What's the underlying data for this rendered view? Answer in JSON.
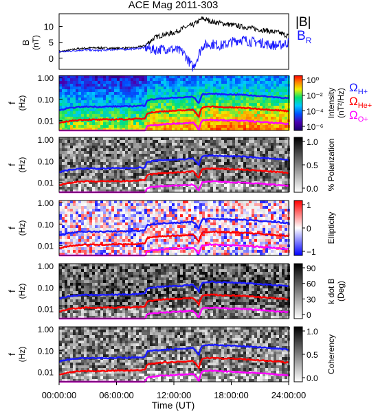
{
  "title": "ACE Mag 2011-303",
  "colors": {
    "black": "#000000",
    "blue": "#1a1aff",
    "red": "#ff0000",
    "magenta": "#ff00ff"
  },
  "chart_data": [
    {
      "type": "line",
      "panel": "B",
      "ylabel": "B",
      "yunit": "(nT)",
      "ylim": [
        -3.5,
        14
      ],
      "yticks": [
        "0",
        "5",
        "10"
      ],
      "yticks_val": [
        0,
        5,
        10
      ],
      "legend": [
        "|B|",
        "BR"
      ],
      "x_hours": [
        0,
        1,
        2,
        3,
        4,
        5,
        6,
        7,
        8,
        9,
        10,
        11,
        12,
        13,
        14,
        15,
        16,
        17,
        18,
        19,
        20,
        21,
        22,
        23,
        24
      ],
      "series": [
        {
          "name": "|B|",
          "color": "#000000",
          "values": [
            2.0,
            2.5,
            3.0,
            3.2,
            3.3,
            3.2,
            3.1,
            3.2,
            3.3,
            4.0,
            6.5,
            7.5,
            8.0,
            9.5,
            10.5,
            12.5,
            11.5,
            11.0,
            10.5,
            10.0,
            9.5,
            9.0,
            8.5,
            8.0,
            7.0
          ]
        },
        {
          "name": "BR",
          "color": "#1a1aff",
          "values": [
            2.0,
            2.2,
            2.5,
            2.6,
            2.4,
            2.6,
            2.8,
            2.8,
            3.0,
            3.4,
            2.6,
            3.0,
            2.8,
            1.8,
            -3.0,
            4.0,
            4.5,
            4.0,
            5.0,
            6.0,
            5.2,
            5.0,
            4.2,
            4.0,
            5.0
          ]
        }
      ]
    },
    {
      "type": "heatmap",
      "panel": "Intensity",
      "ylabel": "f",
      "yunit": "(Hz)",
      "yticks": [
        "1.00",
        "0.10",
        "0.01"
      ],
      "colorbar_label": "Intensity",
      "colorbar_unit": "(nT²/Hz)",
      "colorbar_ticks": [
        "10⁰",
        "10⁻²",
        "10⁻⁴",
        "10⁻⁶"
      ],
      "legend": [
        "ΩH+",
        "ΩHe+",
        "ΩO+"
      ]
    },
    {
      "type": "heatmap",
      "panel": "Polarization",
      "ylabel": "f",
      "yunit": "(Hz)",
      "yticks": [
        "1.00",
        "0.10",
        "0.01"
      ],
      "colorbar_label": "% Polarization",
      "colorbar_ticks": [
        "1.0",
        "0.5",
        "0.0"
      ]
    },
    {
      "type": "heatmap",
      "panel": "Ellipticity",
      "ylabel": "f",
      "yunit": "(Hz)",
      "yticks": [
        "1.00",
        "0.10",
        "0.01"
      ],
      "colorbar_label": "Ellipticity",
      "colorbar_ticks": [
        "1",
        "0",
        "−1"
      ]
    },
    {
      "type": "heatmap",
      "panel": "k dot B",
      "ylabel": "f",
      "yunit": "(Hz)",
      "yticks": [
        "1.00",
        "0.10",
        "0.01"
      ],
      "colorbar_label": "k dot B",
      "colorbar_unit": "(Deg)",
      "colorbar_ticks": [
        "90",
        "60",
        "30",
        "0"
      ]
    },
    {
      "type": "heatmap",
      "panel": "Coherency",
      "ylabel": "f",
      "yunit": "(Hz)",
      "yticks": [
        "1.00",
        "0.10",
        "0.01"
      ],
      "colorbar_label": "Coherency",
      "colorbar_ticks": [
        "1.0",
        "0.5",
        "0.0"
      ]
    }
  ],
  "gyrofrequency_hours": [
    0,
    1,
    2,
    3,
    4,
    5,
    6,
    7,
    8,
    9,
    9.2,
    10,
    11,
    12,
    13,
    14,
    14.6,
    15,
    16,
    17,
    18,
    19,
    20,
    21,
    22,
    23,
    24
  ],
  "gyrofrequency_H_hz": [
    0.03,
    0.038,
    0.043,
    0.045,
    0.044,
    0.045,
    0.046,
    0.046,
    0.048,
    0.05,
    0.09,
    0.1,
    0.11,
    0.115,
    0.12,
    0.13,
    0.06,
    0.17,
    0.18,
    0.17,
    0.165,
    0.16,
    0.15,
    0.14,
    0.13,
    0.12,
    0.11
  ],
  "xaxis": {
    "label": "Time (UT)",
    "ticks": [
      "00:00:00",
      "06:00:00",
      "12:00:00",
      "18:00:00",
      "24:00:00"
    ],
    "ticks_val": [
      0,
      6,
      12,
      18,
      24
    ],
    "range": [
      0,
      24
    ]
  }
}
